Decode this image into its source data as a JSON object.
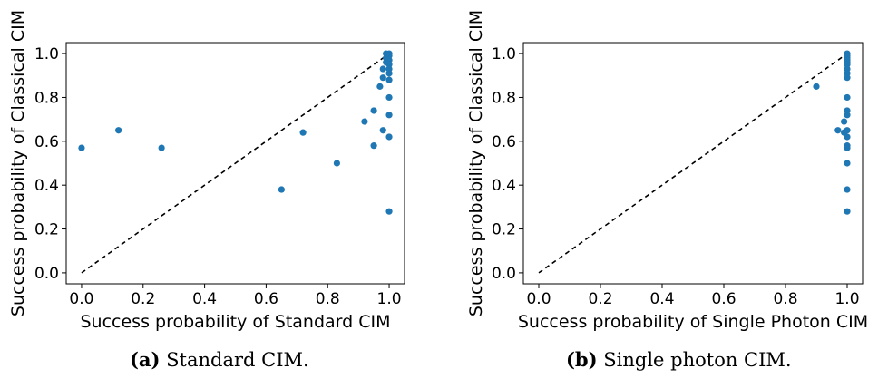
{
  "chart_data": [
    {
      "type": "scatter",
      "xlabel": "Success probability of Standard CIM",
      "ylabel": "Success probability of Classical CIM",
      "xlim": [
        -0.05,
        1.05
      ],
      "ylim": [
        -0.05,
        1.05
      ],
      "xticks": [
        "0.0",
        "0.2",
        "0.4",
        "0.6",
        "0.8",
        "1.0"
      ],
      "yticks": [
        "0.0",
        "0.2",
        "0.4",
        "0.6",
        "0.8",
        "1.0"
      ],
      "reference_line": {
        "style": "dashed",
        "from": [
          0,
          0
        ],
        "to": [
          1,
          1
        ]
      },
      "point_color": "#1f77b4",
      "points": [
        [
          0.0,
          0.57
        ],
        [
          0.12,
          0.65
        ],
        [
          0.26,
          0.57
        ],
        [
          0.65,
          0.38
        ],
        [
          0.72,
          0.64
        ],
        [
          0.83,
          0.5
        ],
        [
          0.92,
          0.69
        ],
        [
          0.95,
          0.74
        ],
        [
          0.95,
          0.58
        ],
        [
          0.97,
          0.85
        ],
        [
          0.98,
          0.65
        ],
        [
          0.98,
          0.89
        ],
        [
          0.98,
          0.93
        ],
        [
          0.99,
          0.96
        ],
        [
          0.99,
          0.98
        ],
        [
          0.99,
          1.0
        ],
        [
          1.0,
          1.0
        ],
        [
          1.0,
          0.99
        ],
        [
          1.0,
          0.97
        ],
        [
          1.0,
          0.95
        ],
        [
          1.0,
          0.93
        ],
        [
          1.0,
          0.91
        ],
        [
          1.0,
          0.88
        ],
        [
          1.0,
          0.8
        ],
        [
          1.0,
          0.72
        ],
        [
          1.0,
          0.62
        ],
        [
          1.0,
          0.28
        ]
      ],
      "caption_label": "(a)",
      "caption_text": "Standard CIM."
    },
    {
      "type": "scatter",
      "xlabel": "Success probability of Single Photon CIM",
      "ylabel": "Success probability of Classical CIM",
      "xlim": [
        -0.05,
        1.05
      ],
      "ylim": [
        -0.05,
        1.05
      ],
      "xticks": [
        "0.0",
        "0.2",
        "0.4",
        "0.6",
        "0.8",
        "1.0"
      ],
      "yticks": [
        "0.0",
        "0.2",
        "0.4",
        "0.6",
        "0.8",
        "1.0"
      ],
      "reference_line": {
        "style": "dashed",
        "from": [
          0,
          0
        ],
        "to": [
          1,
          1
        ]
      },
      "point_color": "#1f77b4",
      "points": [
        [
          0.9,
          0.85
        ],
        [
          0.97,
          0.65
        ],
        [
          0.99,
          0.69
        ],
        [
          0.99,
          0.64
        ],
        [
          1.0,
          1.0
        ],
        [
          1.0,
          0.99
        ],
        [
          1.0,
          0.98
        ],
        [
          1.0,
          0.97
        ],
        [
          1.0,
          0.96
        ],
        [
          1.0,
          0.95
        ],
        [
          1.0,
          0.93
        ],
        [
          1.0,
          0.91
        ],
        [
          1.0,
          0.89
        ],
        [
          1.0,
          0.8
        ],
        [
          1.0,
          0.74
        ],
        [
          1.0,
          0.72
        ],
        [
          1.0,
          0.65
        ],
        [
          1.0,
          0.62
        ],
        [
          1.0,
          0.58
        ],
        [
          1.0,
          0.57
        ],
        [
          1.0,
          0.5
        ],
        [
          1.0,
          0.38
        ],
        [
          1.0,
          0.28
        ]
      ],
      "caption_label": "(b)",
      "caption_text": "Single photon CIM."
    }
  ]
}
